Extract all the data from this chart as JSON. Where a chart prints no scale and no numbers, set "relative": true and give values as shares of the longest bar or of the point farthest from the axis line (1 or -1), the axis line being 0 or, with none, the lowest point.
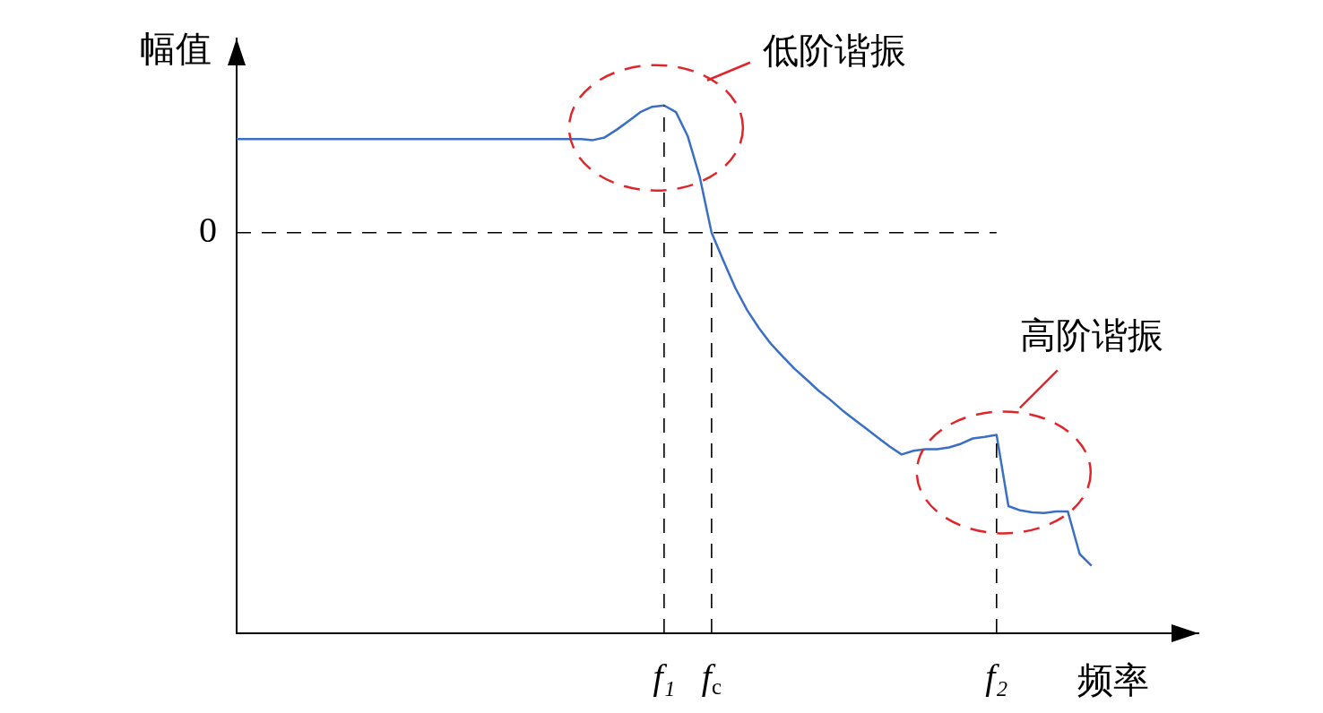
{
  "chart_data": {
    "type": "line",
    "relative": true,
    "xlabel": "频率",
    "ylabel": "幅值",
    "categories": [
      null,
      null,
      null,
      null,
      null,
      null,
      null,
      null,
      null,
      null,
      null,
      null,
      null,
      null,
      null,
      null,
      null,
      null,
      null,
      null,
      null,
      null,
      null,
      null,
      null,
      null,
      null,
      null,
      null,
      null,
      null,
      null,
      null,
      null,
      null,
      null,
      "f₁",
      null,
      null,
      null,
      "f$_{c}$",
      null,
      null,
      null,
      null,
      null,
      null,
      null,
      null,
      null,
      null,
      null,
      null,
      null,
      null,
      null,
      null,
      null,
      null,
      null,
      null,
      null,
      null,
      null,
      "f₂",
      null,
      null,
      null,
      null,
      null,
      null,
      null,
      null,
      null,
      null,
      null,
      null,
      null,
      null,
      null,
      null,
      null
    ],
    "series": [
      {
        "color": "#3a6fc4",
        "values": [
          0.281,
          0.281,
          0.281,
          0.281,
          0.281,
          0.281,
          0.281,
          0.281,
          0.281,
          0.281,
          0.281,
          0.281,
          0.281,
          0.281,
          0.281,
          0.281,
          0.281,
          0.281,
          0.281,
          0.281,
          0.281,
          0.281,
          0.281,
          0.281,
          0.281,
          0.281,
          0.281,
          0.281,
          0.281,
          0.281,
          0.278,
          0.286,
          0.309,
          0.335,
          0.362,
          0.378,
          0.382,
          0.362,
          0.289,
          0.168,
          0,
          -0.085,
          -0.166,
          -0.233,
          -0.287,
          -0.334,
          -0.372,
          -0.409,
          -0.441,
          -0.474,
          -0.502,
          -0.533,
          -0.561,
          -0.588,
          -0.615,
          -0.642,
          -0.666,
          -0.655,
          -0.65,
          -0.65,
          -0.645,
          -0.634,
          -0.618,
          -0.613,
          -0.607,
          -0.821,
          -0.834,
          -0.84,
          -0.842,
          -0.837,
          -0.837,
          -0.965,
          -1,
          null,
          null,
          null,
          null,
          null,
          null,
          null,
          null,
          null
        ]
      }
    ],
    "ref_lines": [
      {
        "axis": "y",
        "value": 0,
        "label": "0",
        "color": "#000000",
        "line_style": "dashed"
      },
      {
        "axis": "x",
        "value": "f₁",
        "color": "#000000",
        "line_style": "dashed"
      },
      {
        "axis": "x",
        "value": "f$_{c}$",
        "color": "#000000",
        "line_style": "dashed"
      },
      {
        "axis": "x",
        "value": "f₂",
        "color": "#000000",
        "line_style": "dashed"
      }
    ],
    "annotations": [
      {
        "text": "低阶谐振",
        "x": "f₁",
        "y": 0.382
      },
      {
        "text": "高阶谐振",
        "x": "f₂",
        "y": -0.607
      }
    ]
  }
}
